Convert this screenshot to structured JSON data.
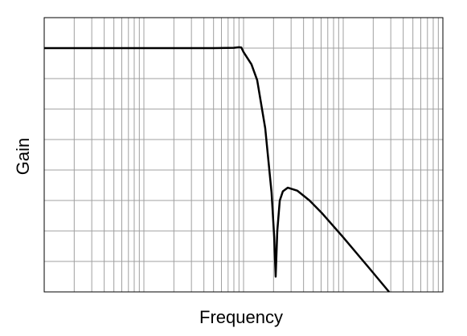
{
  "chart_data": {
    "type": "line",
    "x_label": "Frequency",
    "y_label": "Gain",
    "xscale": "log",
    "xlim": [
      1,
      10000
    ],
    "xticks": [
      1,
      2,
      3,
      4,
      5,
      6,
      7,
      8,
      9,
      10,
      20,
      30,
      40,
      50,
      60,
      70,
      80,
      90,
      100,
      200,
      300,
      400,
      500,
      600,
      700,
      800,
      900,
      1000,
      2000,
      3000,
      4000,
      5000,
      6000,
      7000,
      8000,
      9000,
      10000
    ],
    "ylim": [
      0,
      9
    ],
    "yticks": [
      0,
      1,
      2,
      3,
      4,
      5,
      6,
      7,
      8,
      9
    ],
    "grid": true,
    "x": [
      1,
      10,
      50,
      80,
      90,
      95,
      100,
      120,
      137,
      165,
      191,
      203,
      210,
      218,
      231,
      248,
      278,
      347,
      459,
      606,
      1000,
      1846,
      2884
    ],
    "series": [
      {
        "color": "#000000",
        "values": [
          8,
          8,
          8,
          8.01,
          8.03,
          8.02,
          7.87,
          7.47,
          6.95,
          5.37,
          3.26,
          1.8,
          0.5,
          2.0,
          3.0,
          3.3,
          3.42,
          3.32,
          3.0,
          2.6,
          1.79,
          0.76,
          0
        ]
      }
    ]
  }
}
